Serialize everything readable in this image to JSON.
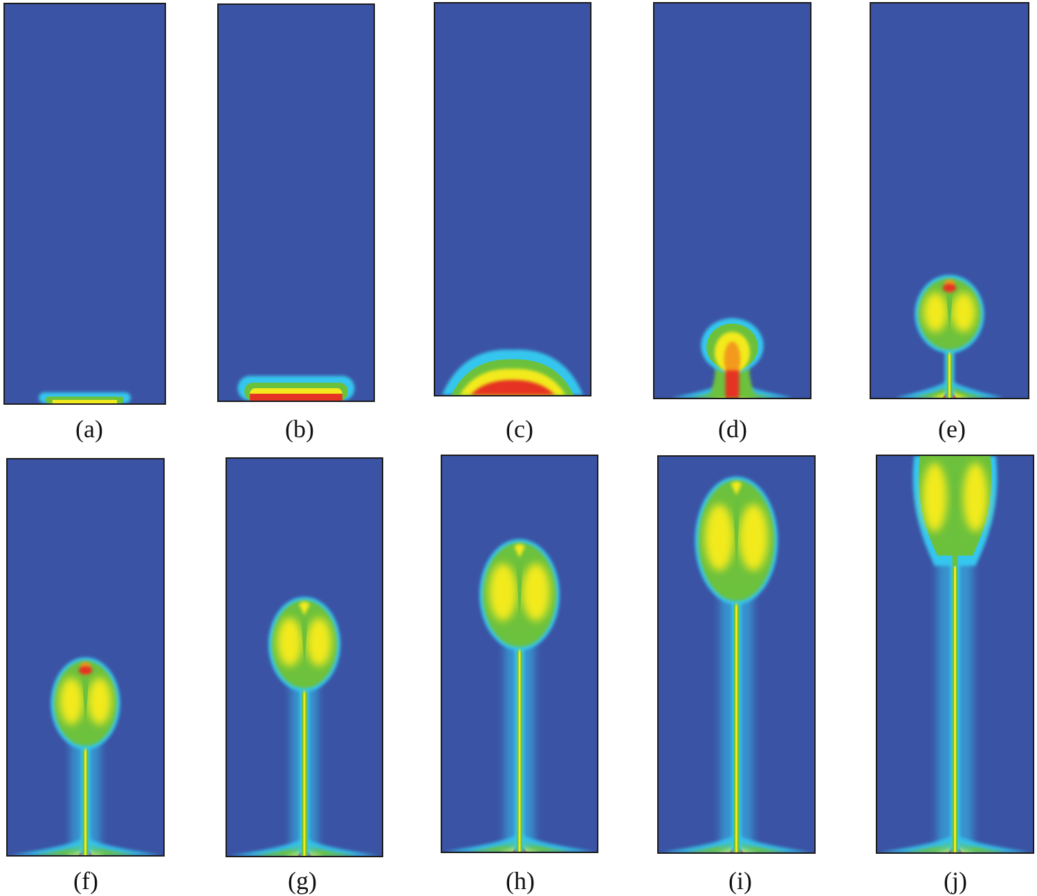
{
  "figure": {
    "panels": [
      {
        "id": "a",
        "label": "(a)",
        "stage": 0
      },
      {
        "id": "b",
        "label": "(b)",
        "stage": 1
      },
      {
        "id": "c",
        "label": "(c)",
        "stage": 2
      },
      {
        "id": "d",
        "label": "(d)",
        "stage": 3
      },
      {
        "id": "e",
        "label": "(e)",
        "stage": 4
      },
      {
        "id": "f",
        "label": "(f)",
        "stage": 5
      },
      {
        "id": "g",
        "label": "(g)",
        "stage": 6
      },
      {
        "id": "h",
        "label": "(h)",
        "stage": 7
      },
      {
        "id": "i",
        "label": "(i)",
        "stage": 8
      },
      {
        "id": "j",
        "label": "(j)",
        "stage": 9
      }
    ],
    "colors": {
      "background": "#3b53a4",
      "cyan": "#36c6ee",
      "green": "#6cc13c",
      "yellow": "#f2ea1e",
      "orange": "#f39a1f",
      "red": "#e53324",
      "frame": "#1a1a1a"
    }
  }
}
